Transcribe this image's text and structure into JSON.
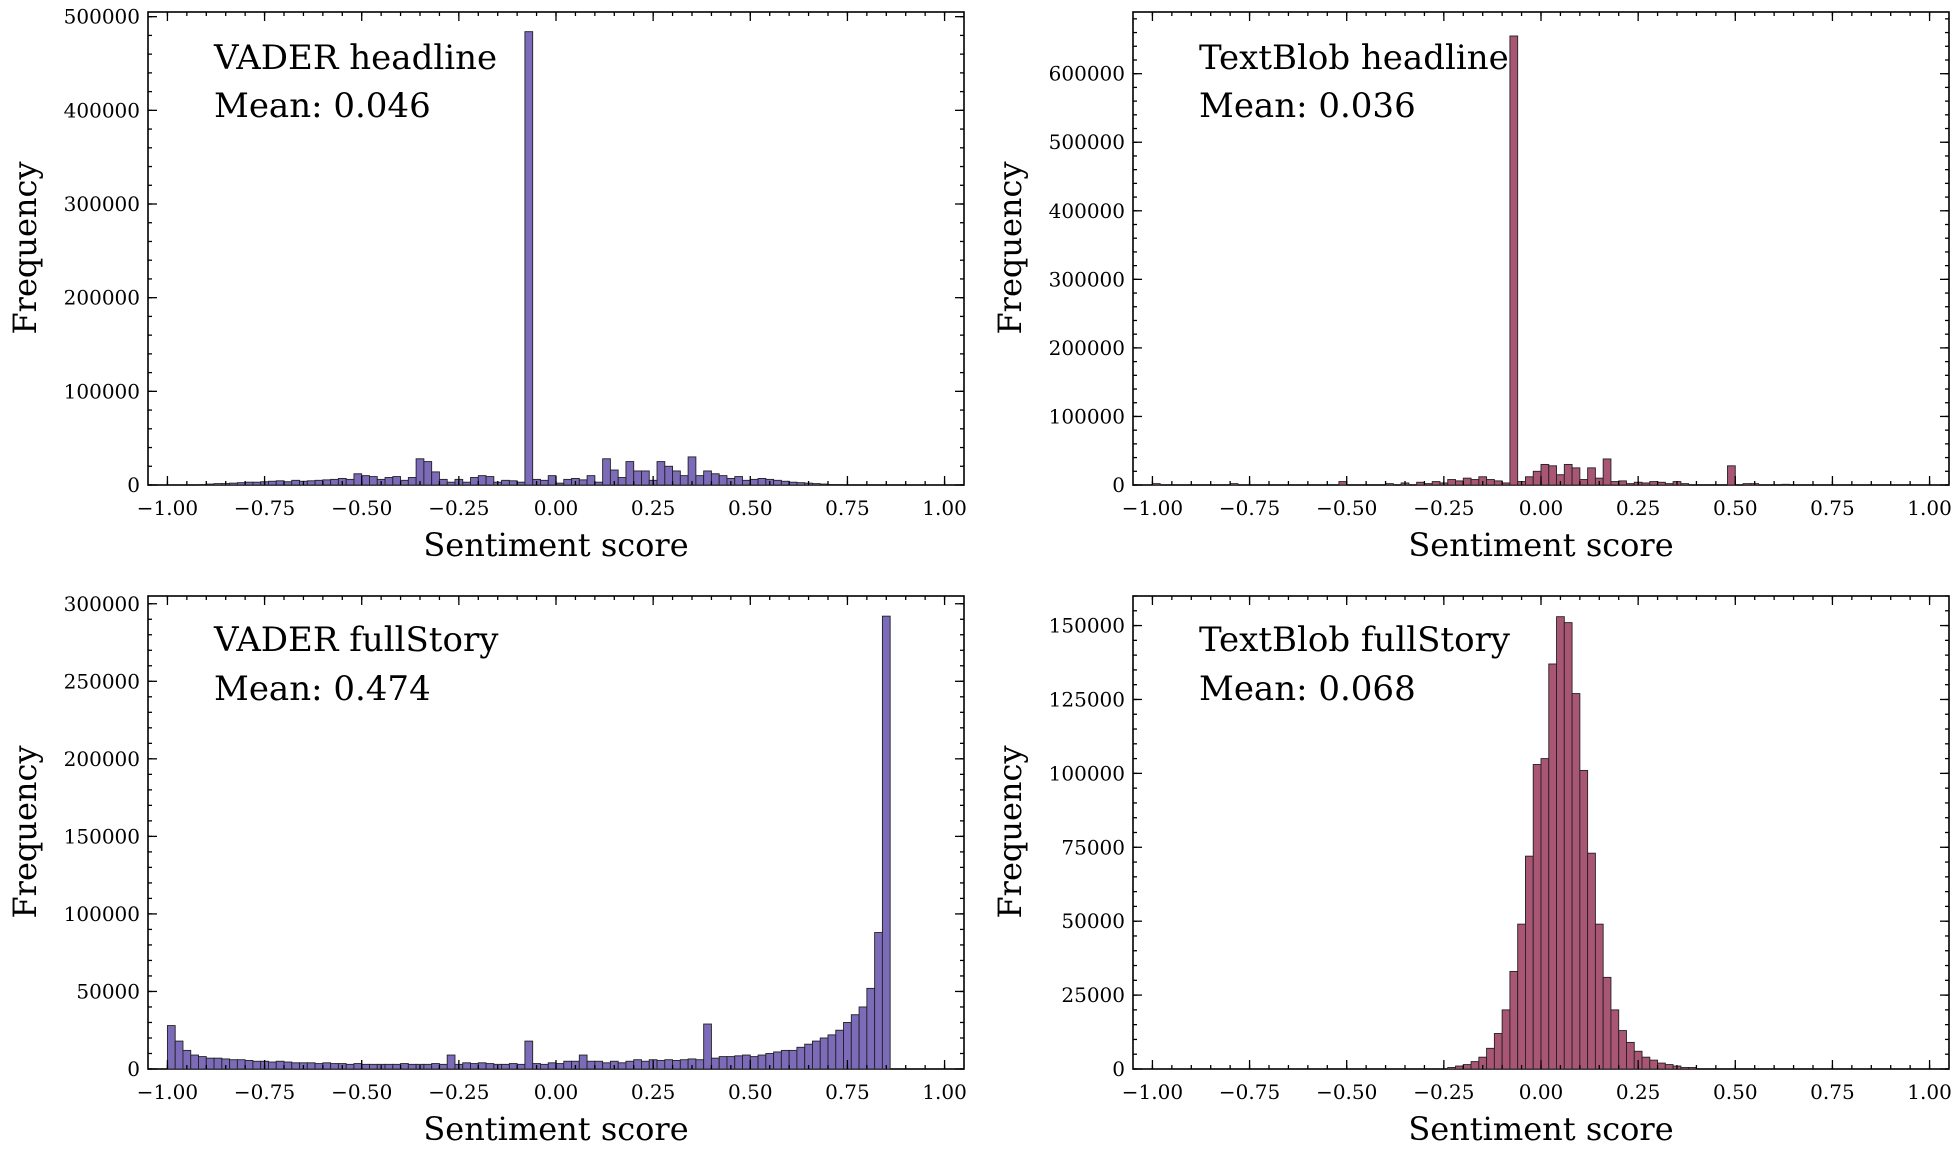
{
  "chart_data": [
    {
      "type": "bar",
      "panel": "top-left",
      "annotation": "VADER headline",
      "mean_label": "Mean: 0.046",
      "xlabel": "Sentiment score",
      "ylabel": "Frequency",
      "xlim": [
        -1.05,
        1.05
      ],
      "ylim": [
        0,
        505000
      ],
      "xticks": [
        -1,
        -0.75,
        -0.5,
        -0.25,
        0,
        0.25,
        0.5,
        0.75,
        1
      ],
      "xtick_labels": [
        "−1.00",
        "−0.75",
        "−0.50",
        "−0.25",
        "0.00",
        "0.25",
        "0.50",
        "0.75",
        "1.00"
      ],
      "yticks": [
        0,
        100000,
        200000,
        300000,
        400000,
        500000
      ],
      "ytick_labels": [
        "0",
        "100000",
        "200000",
        "300000",
        "400000",
        "500000"
      ],
      "color": "#7b6bb8",
      "bin_start": -1,
      "bin_width": 0.02,
      "values": [
        0,
        0,
        0,
        0,
        500,
        1000,
        1500,
        1500,
        2000,
        2500,
        3000,
        3000,
        3500,
        4000,
        4500,
        3500,
        5000,
        4000,
        4500,
        5000,
        5500,
        6000,
        7000,
        6000,
        12000,
        10000,
        9000,
        6000,
        8000,
        9000,
        5000,
        8000,
        28000,
        25000,
        14000,
        6000,
        3000,
        6000,
        3000,
        8000,
        10000,
        9000,
        3000,
        5000,
        4500,
        3000,
        484000,
        6000,
        5000,
        10000,
        2000,
        6000,
        7000,
        5500,
        10000,
        3000,
        28000,
        16000,
        8000,
        25000,
        15000,
        15000,
        5000,
        25000,
        20000,
        15000,
        10000,
        30000,
        10000,
        15000,
        12000,
        10000,
        7000,
        9000,
        5000,
        6000,
        7000,
        6000,
        5000,
        4000,
        3000,
        2500,
        2000,
        1500,
        1000,
        500,
        500,
        0,
        0,
        0,
        0,
        0,
        0,
        0,
        0,
        0,
        0,
        0,
        0,
        0
      ]
    },
    {
      "type": "bar",
      "panel": "top-right",
      "annotation": "TextBlob headline",
      "mean_label": "Mean: 0.036",
      "xlabel": "Sentiment score",
      "ylabel": "Frequency",
      "xlim": [
        -1.05,
        1.05
      ],
      "ylim": [
        0,
        690000
      ],
      "xticks": [
        -1,
        -0.75,
        -0.5,
        -0.25,
        0,
        0.25,
        0.5,
        0.75,
        1
      ],
      "xtick_labels": [
        "−1.00",
        "−0.75",
        "−0.50",
        "−0.25",
        "0.00",
        "0.25",
        "0.50",
        "0.75",
        "1.00"
      ],
      "yticks": [
        0,
        100000,
        200000,
        300000,
        400000,
        500000,
        600000
      ],
      "ytick_labels": [
        "0",
        "100000",
        "200000",
        "300000",
        "400000",
        "500000",
        "600000"
      ],
      "color": "#a85674",
      "bin_start": -1,
      "bin_width": 0.02,
      "values": [
        2000,
        0,
        0,
        0,
        0,
        0,
        0,
        0,
        0,
        0,
        2000,
        0,
        0,
        0,
        0,
        0,
        0,
        0,
        0,
        0,
        0,
        0,
        0,
        0,
        5000,
        0,
        0,
        0,
        0,
        0,
        2000,
        0,
        3000,
        0,
        4000,
        2000,
        5000,
        3000,
        8000,
        6000,
        10000,
        8000,
        12000,
        8000,
        6000,
        3000,
        655000,
        5000,
        12000,
        20000,
        30000,
        28000,
        15000,
        30000,
        25000,
        8000,
        25000,
        10000,
        38000,
        5000,
        6000,
        2000,
        4000,
        3000,
        5000,
        4000,
        2000,
        5000,
        2000,
        0,
        0,
        0,
        0,
        0,
        28000,
        0,
        2000,
        2000,
        0,
        0,
        0,
        1000,
        0,
        0,
        0,
        0,
        0,
        0,
        0,
        0,
        0,
        0,
        0,
        0,
        0,
        0,
        0,
        0,
        0,
        0
      ]
    },
    {
      "type": "bar",
      "panel": "bottom-left",
      "annotation": "VADER fullStory",
      "mean_label": "Mean: 0.474",
      "xlabel": "Sentiment score",
      "ylabel": "Frequency",
      "xlim": [
        -1.05,
        1.05
      ],
      "ylim": [
        0,
        305000
      ],
      "xticks": [
        -1,
        -0.75,
        -0.5,
        -0.25,
        0,
        0.25,
        0.5,
        0.75,
        1
      ],
      "xtick_labels": [
        "−1.00",
        "−0.75",
        "−0.50",
        "−0.25",
        "0.00",
        "0.25",
        "0.50",
        "0.75",
        "1.00"
      ],
      "yticks": [
        0,
        50000,
        100000,
        150000,
        200000,
        250000,
        300000
      ],
      "ytick_labels": [
        "0",
        "50000",
        "100000",
        "150000",
        "200000",
        "250000",
        "300000"
      ],
      "color": "#7b6bb8",
      "bin_start": -1,
      "bin_width": 0.02,
      "values": [
        28000,
        18000,
        12000,
        9000,
        8000,
        7000,
        7000,
        6500,
        6000,
        6000,
        5500,
        5000,
        5000,
        4500,
        5000,
        4500,
        4000,
        4000,
        4000,
        3500,
        4000,
        3500,
        3500,
        3000,
        3500,
        3000,
        3000,
        3000,
        3000,
        3000,
        3500,
        3000,
        3000,
        3000,
        3500,
        3000,
        9000,
        3000,
        4000,
        3500,
        4000,
        3500,
        3000,
        3000,
        3500,
        3000,
        18000,
        3500,
        3000,
        4000,
        3500,
        5000,
        5000,
        9000,
        5000,
        5000,
        4000,
        5000,
        4000,
        5000,
        6000,
        5000,
        6000,
        5500,
        6000,
        5500,
        6000,
        6500,
        6000,
        29000,
        7000,
        8000,
        8000,
        8500,
        9000,
        8000,
        9000,
        10000,
        11000,
        12000,
        12000,
        14000,
        16000,
        18000,
        20000,
        22000,
        25000,
        30000,
        35000,
        40000,
        52000,
        88000,
        292000
      ]
    },
    {
      "type": "bar",
      "panel": "bottom-right",
      "annotation": "TextBlob fullStory",
      "mean_label": "Mean: 0.068",
      "xlabel": "Sentiment score",
      "ylabel": "Frequency",
      "xlim": [
        -1.05,
        1.05
      ],
      "ylim": [
        0,
        160000
      ],
      "xticks": [
        -1,
        -0.75,
        -0.5,
        -0.25,
        0,
        0.25,
        0.5,
        0.75,
        1
      ],
      "xtick_labels": [
        "−1.00",
        "−0.75",
        "−0.50",
        "−0.25",
        "0.00",
        "0.25",
        "0.50",
        "0.75",
        "1.00"
      ],
      "yticks": [
        0,
        25000,
        50000,
        75000,
        100000,
        125000,
        150000
      ],
      "ytick_labels": [
        "0",
        "25000",
        "50000",
        "75000",
        "100000",
        "125000",
        "150000"
      ],
      "color": "#a85674",
      "bin_start": -0.24,
      "bin_width": 0.02,
      "values": [
        500,
        1000,
        1500,
        2500,
        4000,
        7000,
        12000,
        20000,
        33000,
        49000,
        72000,
        103000,
        105000,
        137000,
        153000,
        151000,
        127000,
        101000,
        73000,
        49000,
        31000,
        20000,
        13000,
        9000,
        6000,
        4000,
        3000,
        2000,
        1500,
        1000,
        500,
        500
      ]
    }
  ]
}
